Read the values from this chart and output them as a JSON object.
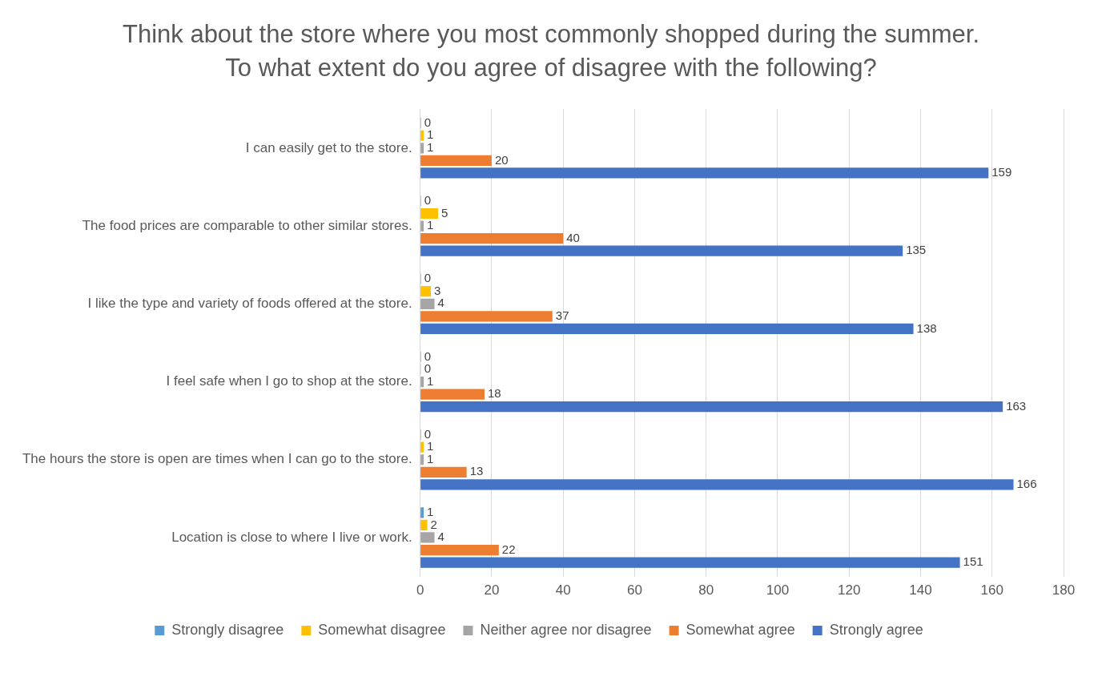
{
  "chart_data": {
    "type": "bar",
    "orientation": "horizontal",
    "title": "Think about the store where you most commonly shopped during the summer. To what extent do you agree of disagree with the following?",
    "categories": [
      "I can easily get to the store.",
      "The food prices are comparable to other similar stores.",
      "I like the type and variety of foods offered at the store.",
      "I feel safe when I go to shop at the store.",
      "The hours the store is open are times when I can go to the store.",
      "Location is close to where I live or work."
    ],
    "series": [
      {
        "name": "Strongly disagree",
        "color": "#5b9bd5",
        "values": [
          0,
          0,
          0,
          0,
          0,
          1
        ]
      },
      {
        "name": "Somewhat disagree",
        "color": "#ffc000",
        "values": [
          1,
          5,
          3,
          0,
          1,
          2
        ]
      },
      {
        "name": "Neither agree nor disagree",
        "color": "#a5a5a5",
        "values": [
          1,
          1,
          4,
          1,
          1,
          4
        ]
      },
      {
        "name": "Somewhat agree",
        "color": "#ed7d31",
        "values": [
          20,
          40,
          37,
          18,
          13,
          22
        ]
      },
      {
        "name": "Strongly agree",
        "color": "#4472c4",
        "values": [
          159,
          135,
          138,
          163,
          166,
          151
        ]
      }
    ],
    "xlim": [
      0,
      180
    ],
    "xticks": [
      0,
      20,
      40,
      60,
      80,
      100,
      120,
      140,
      160,
      180
    ],
    "grid": "x",
    "legend": "bottom",
    "data_labels": true
  }
}
